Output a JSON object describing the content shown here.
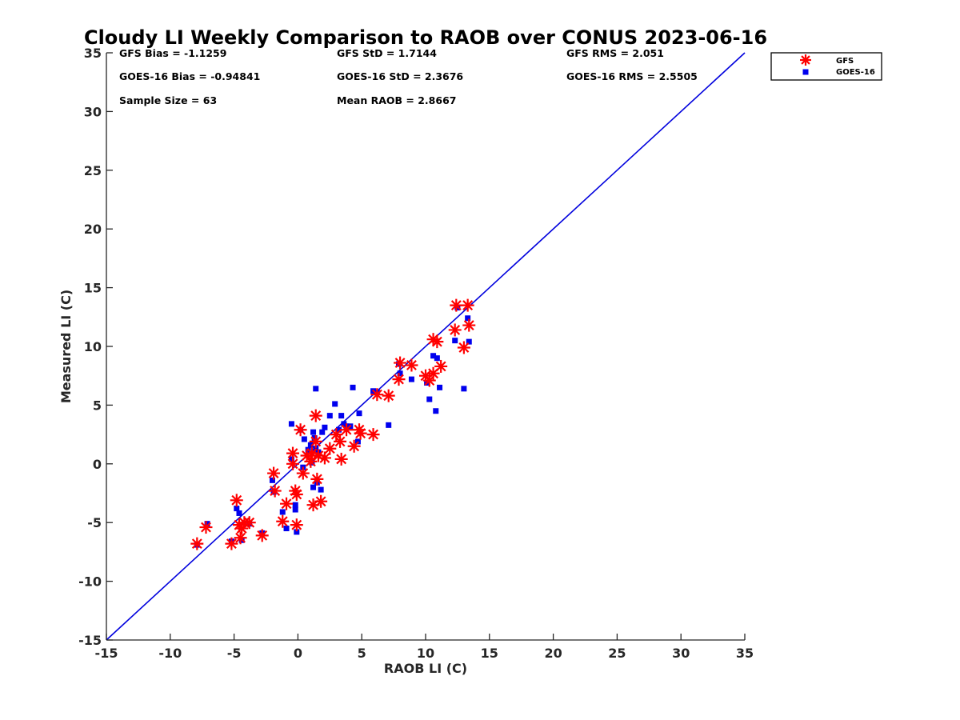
{
  "chart_data": {
    "type": "scatter",
    "title": "Cloudy LI Weekly Comparison to RAOB over CONUS 2023-06-16",
    "xlabel": "RAOB LI (C)",
    "ylabel": "Measured LI (C)",
    "xlim": [
      -15,
      35
    ],
    "ylim": [
      -15,
      35
    ],
    "xticks": [
      "-15",
      "-10",
      "-5",
      "0",
      "5",
      "10",
      "15",
      "20",
      "25",
      "30",
      "35"
    ],
    "yticks": [
      "-15",
      "-10",
      "-5",
      "0",
      "5",
      "10",
      "15",
      "20",
      "25",
      "30",
      "35"
    ],
    "grid": false,
    "legend_position": "top-right, outside plot",
    "reference_line": {
      "x": [
        -15,
        35
      ],
      "y": [
        -15,
        35
      ],
      "color": "#0000dd"
    },
    "stats": [
      {
        "key": "gfs_bias",
        "text": "GFS Bias = -1.1259"
      },
      {
        "key": "gfs_std",
        "text": "GFS StD = 1.7144"
      },
      {
        "key": "gfs_rms",
        "text": "GFS RMS = 2.051"
      },
      {
        "key": "goes_bias",
        "text": "GOES-16 Bias = -0.94841"
      },
      {
        "key": "goes_std",
        "text": "GOES-16 StD = 2.3676"
      },
      {
        "key": "goes_rms",
        "text": "GOES-16 RMS = 2.5505"
      },
      {
        "key": "sample_size",
        "text": "Sample Size = 63"
      },
      {
        "key": "mean_raob",
        "text": "Mean RAOB = 2.8667"
      }
    ],
    "series": [
      {
        "name": "GFS",
        "marker": "asterisk",
        "color": "#ff0000",
        "points": [
          [
            -7.9,
            -6.8
          ],
          [
            -7.2,
            -5.4
          ],
          [
            -5.2,
            -6.8
          ],
          [
            -4.8,
            -3.1
          ],
          [
            -4.6,
            -5.2
          ],
          [
            -4.5,
            -6.3
          ],
          [
            -4.4,
            -5.5
          ],
          [
            -4.2,
            -5.0
          ],
          [
            -3.8,
            -5.0
          ],
          [
            -2.8,
            -6.1
          ],
          [
            -1.9,
            -0.8
          ],
          [
            -1.8,
            -2.3
          ],
          [
            -1.2,
            -4.9
          ],
          [
            -0.9,
            -3.4
          ],
          [
            -0.4,
            0.9
          ],
          [
            -0.4,
            0.0
          ],
          [
            -0.2,
            -2.3
          ],
          [
            -0.1,
            -2.6
          ],
          [
            -0.1,
            -5.2
          ],
          [
            0.2,
            2.9
          ],
          [
            0.4,
            -0.8
          ],
          [
            0.7,
            0.7
          ],
          [
            1.0,
            0.2
          ],
          [
            1.1,
            0.9
          ],
          [
            1.2,
            -3.5
          ],
          [
            1.4,
            4.1
          ],
          [
            1.4,
            1.9
          ],
          [
            1.5,
            -1.3
          ],
          [
            1.6,
            0.7
          ],
          [
            1.8,
            -3.2
          ],
          [
            2.1,
            0.5
          ],
          [
            2.5,
            1.3
          ],
          [
            3.0,
            2.5
          ],
          [
            3.3,
            1.9
          ],
          [
            3.4,
            0.4
          ],
          [
            3.8,
            2.9
          ],
          [
            4.4,
            1.5
          ],
          [
            4.8,
            2.9
          ],
          [
            4.9,
            2.6
          ],
          [
            5.9,
            2.5
          ],
          [
            6.2,
            5.9
          ],
          [
            7.1,
            5.8
          ],
          [
            7.9,
            7.2
          ],
          [
            8.0,
            8.6
          ],
          [
            8.9,
            8.4
          ],
          [
            10.0,
            7.5
          ],
          [
            10.3,
            7.1
          ],
          [
            10.6,
            7.7
          ],
          [
            10.6,
            10.6
          ],
          [
            10.9,
            10.4
          ],
          [
            11.2,
            8.3
          ],
          [
            12.3,
            11.4
          ],
          [
            12.4,
            13.5
          ],
          [
            13.0,
            9.9
          ],
          [
            13.3,
            13.5
          ],
          [
            13.4,
            11.8
          ]
        ]
      },
      {
        "name": "GOES-16",
        "marker": "square",
        "color": "#0000ee",
        "points": [
          [
            -7.9,
            -6.9
          ],
          [
            -7.1,
            -5.1
          ],
          [
            -5.2,
            -6.6
          ],
          [
            -4.8,
            -3.8
          ],
          [
            -4.6,
            -4.2
          ],
          [
            -4.4,
            -6.5
          ],
          [
            -3.8,
            -5.1
          ],
          [
            -2.8,
            -5.9
          ],
          [
            -2.0,
            -1.4
          ],
          [
            -1.9,
            -2.4
          ],
          [
            -1.2,
            -4.1
          ],
          [
            -0.9,
            -5.5
          ],
          [
            -0.5,
            3.4
          ],
          [
            -0.5,
            0.4
          ],
          [
            -0.2,
            -3.5
          ],
          [
            -0.2,
            -3.9
          ],
          [
            -0.1,
            -5.8
          ],
          [
            0.2,
            2.9
          ],
          [
            0.4,
            -0.3
          ],
          [
            0.5,
            2.1
          ],
          [
            0.8,
            1.2
          ],
          [
            1.0,
            1.6
          ],
          [
            1.1,
            0.1
          ],
          [
            1.2,
            -2.0
          ],
          [
            1.2,
            2.7
          ],
          [
            1.3,
            2.2
          ],
          [
            1.4,
            6.4
          ],
          [
            1.4,
            1.3
          ],
          [
            1.5,
            -1.6
          ],
          [
            1.6,
            1.0
          ],
          [
            1.8,
            -2.2
          ],
          [
            1.9,
            2.7
          ],
          [
            2.1,
            3.1
          ],
          [
            2.5,
            4.1
          ],
          [
            2.9,
            5.1
          ],
          [
            3.2,
            2.9
          ],
          [
            3.4,
            4.1
          ],
          [
            3.6,
            3.4
          ],
          [
            3.8,
            3.2
          ],
          [
            4.1,
            3.2
          ],
          [
            4.3,
            6.5
          ],
          [
            4.7,
            1.9
          ],
          [
            4.8,
            4.3
          ],
          [
            5.9,
            6.2
          ],
          [
            6.2,
            6.1
          ],
          [
            7.1,
            3.3
          ],
          [
            7.9,
            8.5
          ],
          [
            8.0,
            7.7
          ],
          [
            8.9,
            7.2
          ],
          [
            10.1,
            6.9
          ],
          [
            10.3,
            5.5
          ],
          [
            10.6,
            9.2
          ],
          [
            10.8,
            4.5
          ],
          [
            10.9,
            9.0
          ],
          [
            11.1,
            6.5
          ],
          [
            12.3,
            10.5
          ],
          [
            12.5,
            13.3
          ],
          [
            13.0,
            6.4
          ],
          [
            13.3,
            12.4
          ],
          [
            13.4,
            10.4
          ]
        ]
      }
    ]
  }
}
